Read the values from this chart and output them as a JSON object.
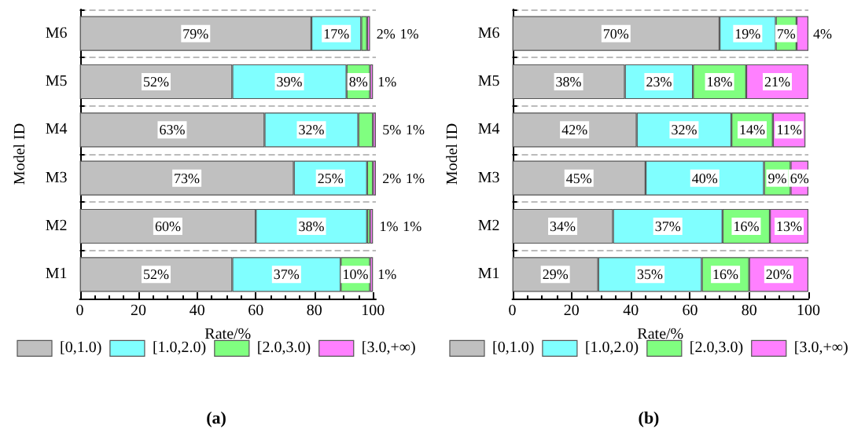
{
  "chart_data": [
    {
      "type": "bar",
      "orientation": "horizontal",
      "stacked": true,
      "xlabel": "Rate/%",
      "ylabel": "Model ID",
      "categories": [
        "M6",
        "M5",
        "M4",
        "M3",
        "M2",
        "M1"
      ],
      "xlim": [
        0,
        101
      ],
      "xticks": [
        0,
        20,
        40,
        60,
        80,
        100
      ],
      "grid": "y",
      "legend": "bottom",
      "annotations": [
        "(a)"
      ],
      "series": [
        {
          "name": "[0,1.0)",
          "color": "#c0c0c0",
          "values": [
            79,
            52,
            63,
            73,
            60,
            52
          ],
          "value_labels": [
            "79%",
            "52%",
            "63%",
            "73%",
            "60%",
            "52%"
          ]
        },
        {
          "name": "[1.0,2.0)",
          "color": "#80ffff",
          "values": [
            17,
            39,
            32,
            25,
            38,
            37
          ],
          "value_labels": [
            "17%",
            "39%",
            "32%",
            "25%",
            "38%",
            "37%"
          ]
        },
        {
          "name": "[2.0,3.0)",
          "color": "#80ff80",
          "values": [
            2,
            8,
            5,
            2,
            1,
            10
          ],
          "value_labels": [
            "2%",
            "8%",
            "5%",
            "2%",
            "1%",
            "10%"
          ]
        },
        {
          "name": "[3.0,+∞)",
          "color": "#ff80ff",
          "values": [
            1,
            1,
            1,
            1,
            1,
            1
          ],
          "value_labels": [
            "1%",
            "1%",
            "1%",
            "1%",
            "1%",
            "1%"
          ]
        }
      ]
    },
    {
      "type": "bar",
      "orientation": "horizontal",
      "stacked": true,
      "xlabel": "Rate/%",
      "ylabel": "Model ID",
      "categories": [
        "M6",
        "M5",
        "M4",
        "M3",
        "M2",
        "M1"
      ],
      "xlim": [
        0,
        100
      ],
      "xticks": [
        0,
        20,
        40,
        60,
        80,
        100
      ],
      "grid": "y",
      "legend": "bottom",
      "annotations": [
        "(b)"
      ],
      "series": [
        {
          "name": "[0,1.0)",
          "color": "#c0c0c0",
          "values": [
            70,
            38,
            42,
            45,
            34,
            29
          ],
          "value_labels": [
            "70%",
            "38%",
            "42%",
            "45%",
            "34%",
            "29%"
          ]
        },
        {
          "name": "[1.0,2.0)",
          "color": "#80ffff",
          "values": [
            19,
            23,
            32,
            40,
            37,
            35
          ],
          "value_labels": [
            "19%",
            "23%",
            "32%",
            "40%",
            "37%",
            "35%"
          ]
        },
        {
          "name": "[2.0,3.0)",
          "color": "#80ff80",
          "values": [
            7,
            18,
            14,
            9,
            16,
            16
          ],
          "value_labels": [
            "7%",
            "18%",
            "14%",
            "9%",
            "16%",
            "16%"
          ]
        },
        {
          "name": "[3.0,+∞)",
          "color": "#ff80ff",
          "values": [
            4,
            21,
            11,
            6,
            13,
            20
          ],
          "value_labels": [
            "4%",
            "21%",
            "11%",
            "6%",
            "13%",
            "20%"
          ]
        }
      ]
    }
  ]
}
